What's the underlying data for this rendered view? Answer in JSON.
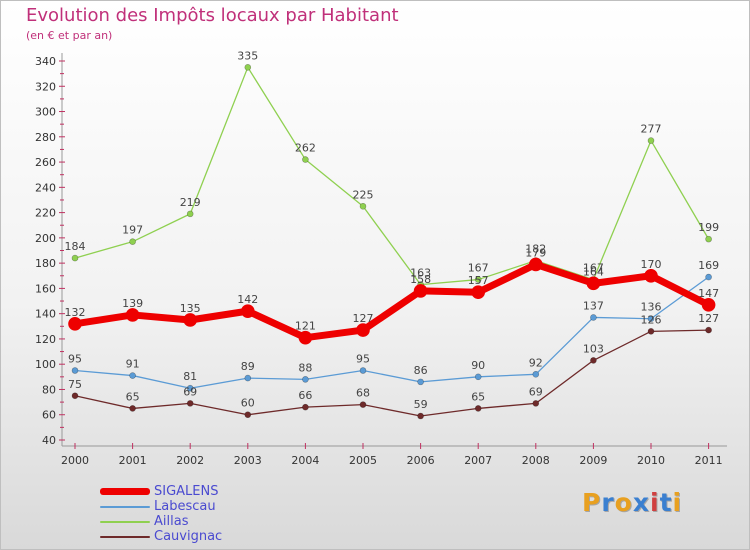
{
  "header": {
    "title": "Evolution des Impôts locaux par Habitant",
    "subtitle": "(en € et par an)"
  },
  "logo": {
    "letters": [
      "P",
      "r",
      "o",
      "x",
      "i",
      "t",
      "i"
    ],
    "colors": [
      "#e8a020",
      "#3a7fd0",
      "#e8a020",
      "#3a7fd0",
      "#d04040",
      "#3a7fd0",
      "#e8a020"
    ]
  },
  "chart_data": {
    "type": "line",
    "title": "Evolution des Impôts locaux par Habitant",
    "subtitle": "(en € et par an)",
    "x": [
      "2000",
      "2001",
      "2002",
      "2003",
      "2004",
      "2005",
      "2006",
      "2007",
      "2008",
      "2009",
      "2010",
      "2011"
    ],
    "ylim": [
      40,
      340
    ],
    "yticks": [
      40,
      60,
      80,
      100,
      120,
      140,
      160,
      180,
      200,
      220,
      240,
      260,
      280,
      300,
      320,
      340
    ],
    "grid": false,
    "legend_position": "bottom-left",
    "series": [
      {
        "name": "SIGALENS",
        "color": "#ee0000",
        "values": [
          132,
          139,
          135,
          142,
          121,
          127,
          158,
          157,
          179,
          164,
          170,
          147
        ]
      },
      {
        "name": "Labescau",
        "color": "#5b9bd5",
        "values": [
          95,
          91,
          81,
          89,
          88,
          95,
          86,
          90,
          92,
          137,
          136,
          169
        ]
      },
      {
        "name": "Aillas",
        "color": "#8fd050",
        "values": [
          184,
          197,
          219,
          335,
          262,
          225,
          163,
          167,
          182,
          167,
          277,
          199
        ]
      },
      {
        "name": "Cauvignac",
        "color": "#6e2a2a",
        "values": [
          75,
          65,
          69,
          60,
          66,
          68,
          59,
          65,
          69,
          103,
          126,
          127
        ]
      }
    ]
  }
}
